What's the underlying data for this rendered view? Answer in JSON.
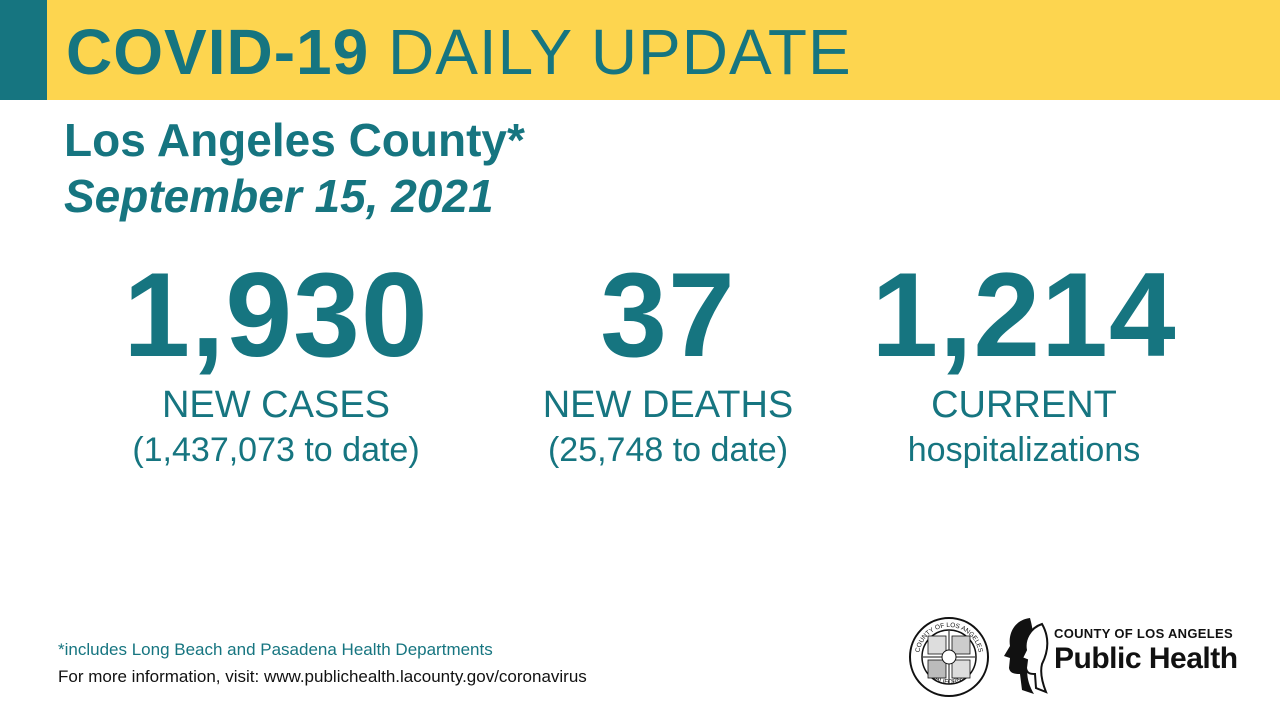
{
  "banner": {
    "title_bold": "COVID-19",
    "title_rest": "DAILY UPDATE"
  },
  "header": {
    "county": "Los Angeles County*",
    "date": "September 15, 2021"
  },
  "stats": {
    "cases": {
      "value": "1,930",
      "label": "NEW CASES",
      "sub": "(1,437,073 to date)"
    },
    "deaths": {
      "value": "37",
      "label": "NEW DEATHS",
      "sub": "(25,748 to date)"
    },
    "hospitalizations": {
      "value": "1,214",
      "label": "CURRENT",
      "sub": "hospitalizations"
    }
  },
  "footer": {
    "footnote": "*includes Long Beach and Pasadena Health Departments",
    "more_info": "For more information, visit: www.publichealth.lacounty.gov/coronavirus"
  },
  "logo": {
    "org": "COUNTY OF LOS ANGELES",
    "name": "Public Health",
    "seal_top_text": "COUNTY OF LOS ANGELES",
    "seal_bottom_text": "CALIFORNIA"
  },
  "colors": {
    "teal": "#167580",
    "yellow": "#fdd54f"
  }
}
